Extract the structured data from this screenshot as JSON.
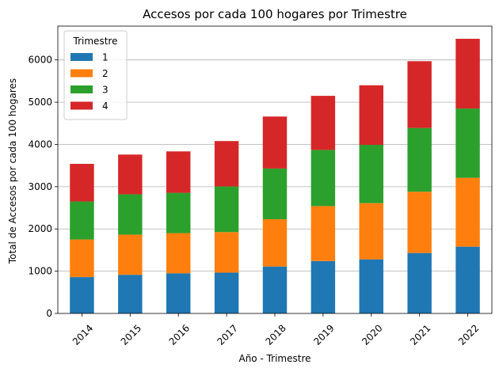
{
  "chart_data": {
    "type": "bar",
    "stacked": true,
    "title": "Accesos por cada 100 hogares por Trimestre",
    "xlabel": "Año - Trimestre",
    "ylabel": "Total de Accesos por cada 100 hogares",
    "categories": [
      "2014",
      "2015",
      "2016",
      "2017",
      "2018",
      "2019",
      "2020",
      "2021",
      "2022"
    ],
    "ylim": [
      0,
      6800
    ],
    "yticks": [
      0,
      1000,
      2000,
      3000,
      4000,
      5000,
      6000
    ],
    "grid": "y",
    "legend": {
      "title": "Trimestre",
      "placement": "top-left"
    },
    "series": [
      {
        "name": "1",
        "color": "#1f77b4",
        "values": [
          860,
          915,
          950,
          965,
          1110,
          1240,
          1280,
          1430,
          1580
        ]
      },
      {
        "name": "2",
        "color": "#ff7f0e",
        "values": [
          890,
          950,
          950,
          960,
          1120,
          1300,
          1330,
          1450,
          1630
        ]
      },
      {
        "name": "3",
        "color": "#2ca02c",
        "values": [
          900,
          955,
          955,
          1080,
          1200,
          1330,
          1380,
          1510,
          1640
        ]
      },
      {
        "name": "4",
        "color": "#d62728",
        "values": [
          890,
          940,
          980,
          1075,
          1230,
          1280,
          1410,
          1580,
          1650
        ]
      }
    ]
  }
}
